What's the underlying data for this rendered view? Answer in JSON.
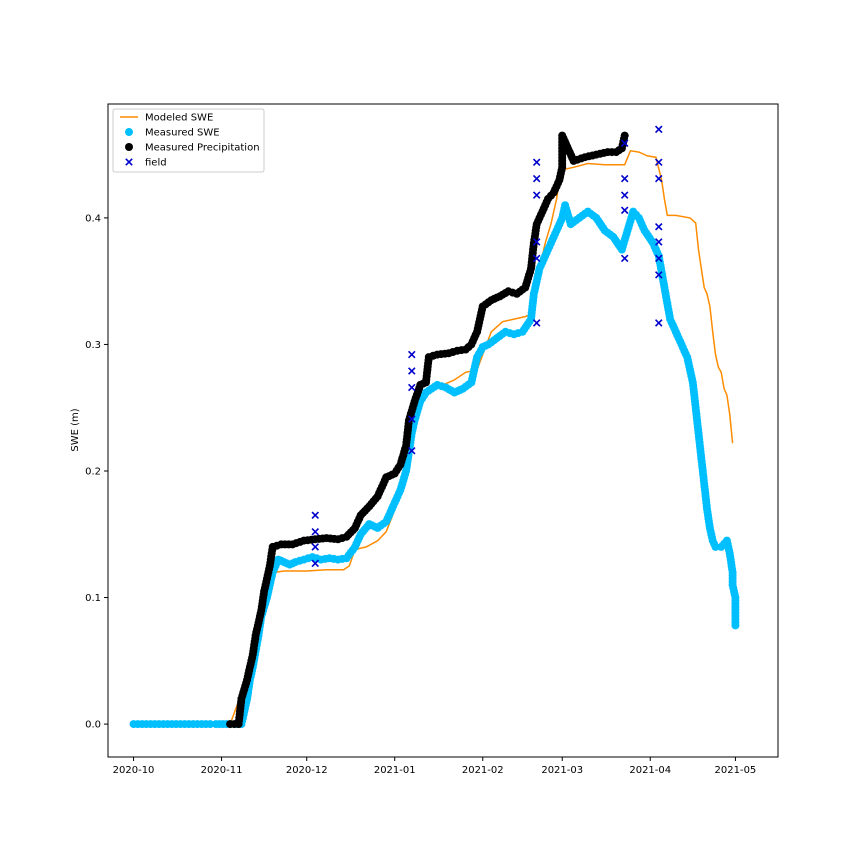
{
  "chart_data": {
    "type": "scatter",
    "title": "",
    "xlabel": "",
    "ylabel": "SWE (m)",
    "x_axis_type": "date",
    "xlim": [
      "2020-09-22",
      "2021-05-16"
    ],
    "ylim": [
      -0.026,
      0.49
    ],
    "xticks": [
      "2020-10-01",
      "2020-11-01",
      "2020-12-01",
      "2021-01-01",
      "2021-02-01",
      "2021-03-01",
      "2021-04-01",
      "2021-05-01"
    ],
    "xtick_labels": [
      "2020-10",
      "2020-11",
      "2020-12",
      "2021-01",
      "2021-02",
      "2021-03",
      "2021-04",
      "2021-05"
    ],
    "yticks": [
      0.0,
      0.1,
      0.2,
      0.3,
      0.4
    ],
    "ytick_labels": [
      "0.0",
      "0.1",
      "0.2",
      "0.3",
      "0.4"
    ],
    "grid": false,
    "legend_position": "top-left",
    "series": [
      {
        "name": "Modeled SWE",
        "kind": "line",
        "color": "#ff8c00",
        "points": [
          [
            "2020-11-04",
            0.0
          ],
          [
            "2020-11-07",
            0.018
          ],
          [
            "2020-11-09",
            0.03
          ],
          [
            "2020-11-11",
            0.048
          ],
          [
            "2020-11-13",
            0.06
          ],
          [
            "2020-11-14",
            0.078
          ],
          [
            "2020-11-15",
            0.09
          ],
          [
            "2020-11-17",
            0.118
          ],
          [
            "2020-11-20",
            0.12
          ],
          [
            "2020-11-23",
            0.121
          ],
          [
            "2020-12-01",
            0.121
          ],
          [
            "2020-12-08",
            0.122
          ],
          [
            "2020-12-14",
            0.122
          ],
          [
            "2020-12-16",
            0.125
          ],
          [
            "2020-12-18",
            0.138
          ],
          [
            "2020-12-22",
            0.14
          ],
          [
            "2020-12-26",
            0.145
          ],
          [
            "2020-12-29",
            0.152
          ],
          [
            "2021-01-02",
            0.175
          ],
          [
            "2021-01-04",
            0.185
          ],
          [
            "2021-01-06",
            0.222
          ],
          [
            "2021-01-08",
            0.245
          ],
          [
            "2021-01-10",
            0.262
          ],
          [
            "2021-01-14",
            0.265
          ],
          [
            "2021-01-18",
            0.268
          ],
          [
            "2021-01-22",
            0.272
          ],
          [
            "2021-01-26",
            0.278
          ],
          [
            "2021-01-30",
            0.28
          ],
          [
            "2021-02-01",
            0.292
          ],
          [
            "2021-02-04",
            0.31
          ],
          [
            "2021-02-08",
            0.318
          ],
          [
            "2021-02-12",
            0.32
          ],
          [
            "2021-02-16",
            0.322
          ],
          [
            "2021-02-19",
            0.325
          ],
          [
            "2021-02-21",
            0.36
          ],
          [
            "2021-02-23",
            0.38
          ],
          [
            "2021-02-25",
            0.395
          ],
          [
            "2021-02-27",
            0.415
          ],
          [
            "2021-02-28",
            0.43
          ],
          [
            "2021-03-01",
            0.438
          ],
          [
            "2021-03-05",
            0.44
          ],
          [
            "2021-03-10",
            0.443
          ],
          [
            "2021-03-16",
            0.442
          ],
          [
            "2021-03-23",
            0.442
          ],
          [
            "2021-03-25",
            0.453
          ],
          [
            "2021-03-28",
            0.452
          ],
          [
            "2021-03-31",
            0.449
          ],
          [
            "2021-04-03",
            0.448
          ],
          [
            "2021-04-05",
            0.43
          ],
          [
            "2021-04-06",
            0.415
          ],
          [
            "2021-04-07",
            0.402
          ],
          [
            "2021-04-10",
            0.402
          ],
          [
            "2021-04-15",
            0.4
          ],
          [
            "2021-04-17",
            0.396
          ],
          [
            "2021-04-18",
            0.375
          ],
          [
            "2021-04-19",
            0.36
          ],
          [
            "2021-04-20",
            0.345
          ],
          [
            "2021-04-21",
            0.34
          ],
          [
            "2021-04-22",
            0.33
          ],
          [
            "2021-04-23",
            0.31
          ],
          [
            "2021-04-24",
            0.292
          ],
          [
            "2021-04-25",
            0.282
          ],
          [
            "2021-04-26",
            0.278
          ],
          [
            "2021-04-27",
            0.265
          ],
          [
            "2021-04-28",
            0.26
          ],
          [
            "2021-04-29",
            0.245
          ],
          [
            "2021-04-30",
            0.222
          ]
        ]
      },
      {
        "name": "Measured SWE",
        "kind": "scatter",
        "marker": "circle",
        "color": "#00bfff",
        "points": [
          [
            "2020-10-01",
            0.0
          ],
          [
            "2020-10-04",
            0.0
          ],
          [
            "2020-10-07",
            0.0
          ],
          [
            "2020-10-10",
            0.0
          ],
          [
            "2020-10-13",
            0.0
          ],
          [
            "2020-10-16",
            0.0
          ],
          [
            "2020-10-19",
            0.0
          ],
          [
            "2020-10-22",
            0.0
          ],
          [
            "2020-10-25",
            0.0
          ],
          [
            "2020-10-28",
            0.0
          ],
          [
            "2020-10-30",
            0.0
          ],
          [
            "2020-11-04",
            0.0
          ],
          [
            "2020-11-06",
            0.0
          ],
          [
            "2020-11-08",
            0.0
          ],
          [
            "2020-11-10",
            0.02
          ],
          [
            "2020-11-11",
            0.035
          ],
          [
            "2020-11-12",
            0.045
          ],
          [
            "2020-11-14",
            0.07
          ],
          [
            "2020-11-15",
            0.085
          ],
          [
            "2020-11-17",
            0.1
          ],
          [
            "2020-11-19",
            0.12
          ],
          [
            "2020-11-21",
            0.13
          ],
          [
            "2020-11-23",
            0.128
          ],
          [
            "2020-11-25",
            0.126
          ],
          [
            "2020-11-27",
            0.128
          ],
          [
            "2020-11-30",
            0.13
          ],
          [
            "2020-12-03",
            0.132
          ],
          [
            "2020-12-06",
            0.13
          ],
          [
            "2020-12-09",
            0.131
          ],
          [
            "2020-12-12",
            0.13
          ],
          [
            "2020-12-15",
            0.131
          ],
          [
            "2020-12-18",
            0.14
          ],
          [
            "2020-12-20",
            0.15
          ],
          [
            "2020-12-23",
            0.158
          ],
          [
            "2020-12-26",
            0.155
          ],
          [
            "2020-12-29",
            0.16
          ],
          [
            "2021-01-01",
            0.175
          ],
          [
            "2021-01-03",
            0.185
          ],
          [
            "2021-01-05",
            0.2
          ],
          [
            "2021-01-07",
            0.23
          ],
          [
            "2021-01-08",
            0.24
          ],
          [
            "2021-01-10",
            0.255
          ],
          [
            "2021-01-12",
            0.262
          ],
          [
            "2021-01-14",
            0.265
          ],
          [
            "2021-01-16",
            0.268
          ],
          [
            "2021-01-19",
            0.266
          ],
          [
            "2021-01-22",
            0.262
          ],
          [
            "2021-01-25",
            0.265
          ],
          [
            "2021-01-28",
            0.27
          ],
          [
            "2021-01-30",
            0.29
          ],
          [
            "2021-02-01",
            0.298
          ],
          [
            "2021-02-03",
            0.3
          ],
          [
            "2021-02-06",
            0.305
          ],
          [
            "2021-02-09",
            0.31
          ],
          [
            "2021-02-12",
            0.308
          ],
          [
            "2021-02-15",
            0.31
          ],
          [
            "2021-02-18",
            0.32
          ],
          [
            "2021-02-19",
            0.34
          ],
          [
            "2021-02-21",
            0.36
          ],
          [
            "2021-02-23",
            0.37
          ],
          [
            "2021-02-25",
            0.38
          ],
          [
            "2021-02-27",
            0.39
          ],
          [
            "2021-03-01",
            0.4
          ],
          [
            "2021-03-02",
            0.41
          ],
          [
            "2021-03-04",
            0.395
          ],
          [
            "2021-03-07",
            0.4
          ],
          [
            "2021-03-10",
            0.405
          ],
          [
            "2021-03-13",
            0.4
          ],
          [
            "2021-03-16",
            0.39
          ],
          [
            "2021-03-19",
            0.385
          ],
          [
            "2021-03-22",
            0.375
          ],
          [
            "2021-03-24",
            0.39
          ],
          [
            "2021-03-26",
            0.405
          ],
          [
            "2021-03-28",
            0.4
          ],
          [
            "2021-03-30",
            0.39
          ],
          [
            "2021-04-02",
            0.38
          ],
          [
            "2021-04-04",
            0.37
          ],
          [
            "2021-04-06",
            0.345
          ],
          [
            "2021-04-08",
            0.32
          ],
          [
            "2021-04-10",
            0.31
          ],
          [
            "2021-04-12",
            0.3
          ],
          [
            "2021-04-14",
            0.29
          ],
          [
            "2021-04-16",
            0.27
          ],
          [
            "2021-04-17",
            0.25
          ],
          [
            "2021-04-18",
            0.23
          ],
          [
            "2021-04-19",
            0.21
          ],
          [
            "2021-04-20",
            0.19
          ],
          [
            "2021-04-21",
            0.17
          ],
          [
            "2021-04-22",
            0.155
          ],
          [
            "2021-04-23",
            0.145
          ],
          [
            "2021-04-24",
            0.14
          ],
          [
            "2021-04-26",
            0.14
          ],
          [
            "2021-04-28",
            0.145
          ],
          [
            "2021-04-29",
            0.135
          ],
          [
            "2021-04-30",
            0.12
          ],
          [
            "2021-04-30",
            0.11
          ],
          [
            "2021-05-01",
            0.1
          ],
          [
            "2021-05-01",
            0.088
          ],
          [
            "2021-05-01",
            0.078
          ]
        ]
      },
      {
        "name": "Measured Precipitation",
        "kind": "scatter",
        "marker": "circle",
        "color": "#000000",
        "points": [
          [
            "2020-11-04",
            0.0
          ],
          [
            "2020-11-07",
            0.0
          ],
          [
            "2020-11-08",
            0.02
          ],
          [
            "2020-11-10",
            0.035
          ],
          [
            "2020-11-12",
            0.055
          ],
          [
            "2020-11-13",
            0.07
          ],
          [
            "2020-11-15",
            0.09
          ],
          [
            "2020-11-16",
            0.105
          ],
          [
            "2020-11-18",
            0.125
          ],
          [
            "2020-11-19",
            0.14
          ],
          [
            "2020-11-22",
            0.142
          ],
          [
            "2020-11-26",
            0.142
          ],
          [
            "2020-11-30",
            0.145
          ],
          [
            "2020-12-04",
            0.146
          ],
          [
            "2020-12-08",
            0.147
          ],
          [
            "2020-12-12",
            0.146
          ],
          [
            "2020-12-15",
            0.148
          ],
          [
            "2020-12-18",
            0.155
          ],
          [
            "2020-12-20",
            0.165
          ],
          [
            "2020-12-23",
            0.172
          ],
          [
            "2020-12-26",
            0.18
          ],
          [
            "2020-12-29",
            0.195
          ],
          [
            "2021-01-01",
            0.198
          ],
          [
            "2021-01-03",
            0.205
          ],
          [
            "2021-01-05",
            0.22
          ],
          [
            "2021-01-06",
            0.24
          ],
          [
            "2021-01-08",
            0.255
          ],
          [
            "2021-01-10",
            0.268
          ],
          [
            "2021-01-12",
            0.27
          ],
          [
            "2021-01-13",
            0.29
          ],
          [
            "2021-01-16",
            0.292
          ],
          [
            "2021-01-20",
            0.293
          ],
          [
            "2021-01-23",
            0.295
          ],
          [
            "2021-01-26",
            0.296
          ],
          [
            "2021-01-28",
            0.3
          ],
          [
            "2021-01-30",
            0.31
          ],
          [
            "2021-02-01",
            0.33
          ],
          [
            "2021-02-04",
            0.335
          ],
          [
            "2021-02-07",
            0.338
          ],
          [
            "2021-02-10",
            0.342
          ],
          [
            "2021-02-13",
            0.34
          ],
          [
            "2021-02-16",
            0.345
          ],
          [
            "2021-02-18",
            0.36
          ],
          [
            "2021-02-19",
            0.38
          ],
          [
            "2021-02-20",
            0.395
          ],
          [
            "2021-02-22",
            0.405
          ],
          [
            "2021-02-24",
            0.415
          ],
          [
            "2021-02-26",
            0.42
          ],
          [
            "2021-02-28",
            0.43
          ],
          [
            "2021-03-01",
            0.44
          ],
          [
            "2021-03-01",
            0.465
          ],
          [
            "2021-03-05",
            0.445
          ],
          [
            "2021-03-09",
            0.448
          ],
          [
            "2021-03-13",
            0.45
          ],
          [
            "2021-03-17",
            0.452
          ],
          [
            "2021-03-20",
            0.452
          ],
          [
            "2021-03-22",
            0.455
          ],
          [
            "2021-03-23",
            0.465
          ]
        ]
      },
      {
        "name": "field",
        "kind": "scatter",
        "marker": "x",
        "color": "#0000cd",
        "points": [
          [
            "2020-12-04",
            0.165
          ],
          [
            "2020-12-04",
            0.152
          ],
          [
            "2020-12-04",
            0.14
          ],
          [
            "2020-12-04",
            0.127
          ],
          [
            "2021-01-07",
            0.292
          ],
          [
            "2021-01-07",
            0.279
          ],
          [
            "2021-01-07",
            0.266
          ],
          [
            "2021-01-07",
            0.241
          ],
          [
            "2021-01-07",
            0.216
          ],
          [
            "2021-02-20",
            0.444
          ],
          [
            "2021-02-20",
            0.431
          ],
          [
            "2021-02-20",
            0.418
          ],
          [
            "2021-02-20",
            0.381
          ],
          [
            "2021-02-20",
            0.368
          ],
          [
            "2021-02-20",
            0.317
          ],
          [
            "2021-03-23",
            0.459
          ],
          [
            "2021-03-23",
            0.431
          ],
          [
            "2021-03-23",
            0.418
          ],
          [
            "2021-03-23",
            0.406
          ],
          [
            "2021-03-23",
            0.368
          ],
          [
            "2021-04-04",
            0.47
          ],
          [
            "2021-04-04",
            0.444
          ],
          [
            "2021-04-04",
            0.431
          ],
          [
            "2021-04-04",
            0.393
          ],
          [
            "2021-04-04",
            0.381
          ],
          [
            "2021-04-04",
            0.368
          ],
          [
            "2021-04-04",
            0.355
          ],
          [
            "2021-04-04",
            0.317
          ]
        ]
      }
    ]
  }
}
